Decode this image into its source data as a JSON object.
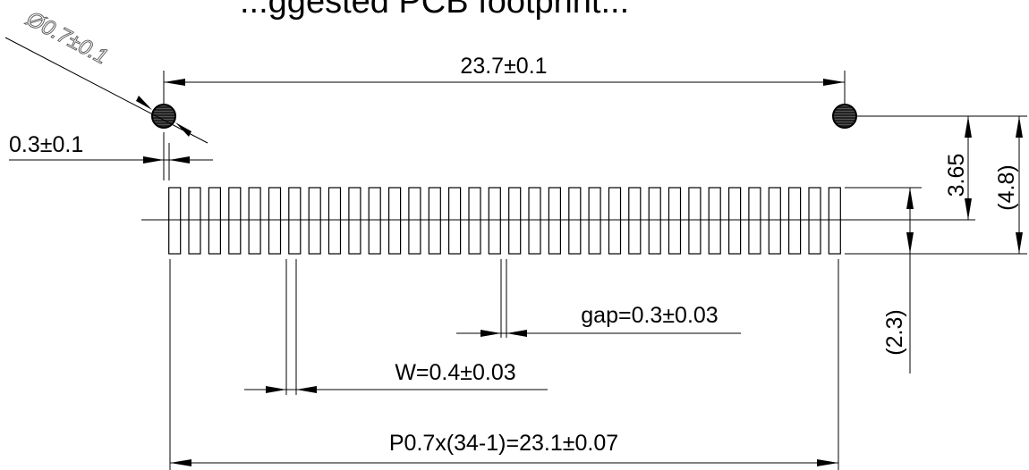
{
  "drawing": {
    "title_partial": "...ggested PCB footprint...",
    "pad_count": 34,
    "labels": {
      "hole_diameter": "Ø0.7±0.1",
      "hole_spacing": "23.7±0.1",
      "edge_offset": "0.3±0.1",
      "dim_3_65": "3.65",
      "dim_4_8": "(4.8)",
      "dim_2_3": "(2.3)",
      "gap": "gap=0.3±0.03",
      "width": "W=0.4±0.03",
      "pitch": "P0.7x(34-1)=23.1±0.07"
    }
  }
}
